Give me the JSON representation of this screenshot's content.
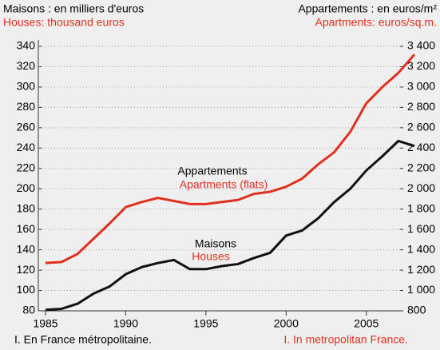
{
  "chart_data": {
    "type": "line",
    "header": {
      "left": [
        "Maisons : en milliers d'euros",
        "Houses: thousand euros"
      ],
      "right": [
        "Appartements : en euros/m²",
        "Apartments: euros/sq.m."
      ]
    },
    "x": [
      1985,
      1986,
      1987,
      1988,
      1989,
      1990,
      1991,
      1992,
      1993,
      1994,
      1995,
      1996,
      1997,
      1998,
      1999,
      2000,
      2001,
      2002,
      2003,
      2004,
      2005,
      2006,
      2007,
      2008
    ],
    "xlim": [
      1985,
      2008
    ],
    "xticks": [
      1985,
      1990,
      1995,
      2000,
      2005
    ],
    "ylim": [
      80,
      340
    ],
    "yticks": [
      80,
      100,
      120,
      140,
      160,
      180,
      200,
      220,
      240,
      260,
      280,
      300,
      320,
      340
    ],
    "y2lim": [
      800,
      3400
    ],
    "y2ticks": [
      800,
      {
        "value": 1000,
        "label": "1 000"
      },
      {
        "value": 1200,
        "label": "1 200"
      },
      {
        "value": 1400,
        "label": "1 400"
      },
      {
        "value": 1600,
        "label": "1 600"
      },
      {
        "value": 1800,
        "label": "1 800"
      },
      {
        "value": 2000,
        "label": "2 000"
      },
      {
        "value": 2200,
        "label": "2 200"
      },
      {
        "value": 2400,
        "label": "2 400"
      },
      {
        "value": 2600,
        "label": "2 600"
      },
      {
        "value": 2800,
        "label": "2 800"
      },
      {
        "value": 3000,
        "label": "3 000"
      },
      {
        "value": 3200,
        "label": "3 200"
      },
      {
        "value": 3400,
        "label": "3 400"
      }
    ],
    "grid": true,
    "series": [
      {
        "color": "#111111",
        "values": [
          81,
          82,
          87,
          97,
          104,
          116,
          123,
          127,
          130,
          121,
          121,
          124,
          126,
          132,
          137,
          154,
          159,
          171,
          187,
          200,
          218,
          232,
          247,
          242
        ]
      },
      {
        "color": "#e03020",
        "axis": "y2",
        "values": [
          1270,
          1280,
          1360,
          1510,
          1660,
          1820,
          1870,
          1910,
          1880,
          1850,
          1850,
          1870,
          1890,
          1950,
          1970,
          2020,
          2100,
          2240,
          2360,
          2560,
          2840,
          3000,
          3140,
          3320
        ]
      }
    ],
    "annotations": [
      {
        "lines": [
          "Appartements",
          "Apartments (flats)"
        ],
        "series": 1
      },
      {
        "lines": [
          "Maisons",
          "Houses"
        ],
        "series": 0
      }
    ],
    "footnotes": [
      "I. En France métropolitaine.",
      "I. In metropolitan France."
    ]
  }
}
